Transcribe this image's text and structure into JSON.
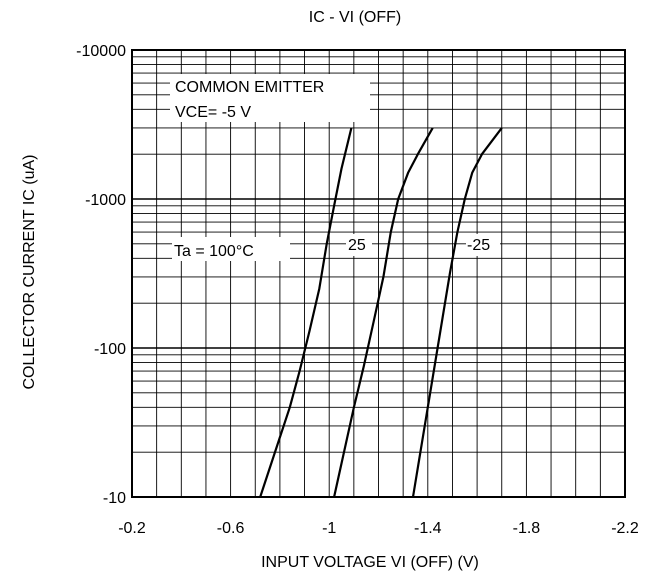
{
  "chart_data": {
    "type": "line",
    "title": "IC - VI (OFF)",
    "xlabel": "INPUT VOLTAGE   VI (OFF) (V)",
    "ylabel": "COLLECTOR CURRENT   IC (uA)",
    "x_scale": "linear",
    "y_scale": "log",
    "xlim": [
      -0.2,
      -2.2
    ],
    "ylim": [
      -10,
      -10000
    ],
    "x_ticks": [
      -0.2,
      -0.6,
      -1.0,
      -1.4,
      -1.8,
      -2.2
    ],
    "x_tick_labels": [
      "-0.2",
      "-0.6",
      "-1",
      "-1.4",
      "-1.8",
      "-2.2"
    ],
    "y_ticks": [
      -10,
      -100,
      -1000,
      -10000
    ],
    "y_tick_labels": [
      "-10",
      "-100",
      "-1000",
      "-10000"
    ],
    "grid": true,
    "annotations": [
      "COMMON EMITTER",
      "VCE= -5 V"
    ],
    "series": [
      {
        "label": "Ta = 100°C",
        "x": [
          -0.72,
          -0.78,
          -0.84,
          -0.88,
          -0.92,
          -0.96,
          -0.99,
          -1.02,
          -1.05,
          -1.09
        ],
        "y": [
          -10,
          -20,
          -40,
          -70,
          -130,
          -250,
          -500,
          -900,
          -1600,
          -3000
        ]
      },
      {
        "label": "25",
        "x": [
          -1.02,
          -1.06,
          -1.1,
          -1.14,
          -1.18,
          -1.22,
          -1.25,
          -1.28,
          -1.32,
          -1.36,
          -1.42
        ],
        "y": [
          -10,
          -20,
          -40,
          -75,
          -150,
          -300,
          -600,
          -1000,
          -1500,
          -2000,
          -3000
        ]
      },
      {
        "label": "-25",
        "x": [
          -1.34,
          -1.37,
          -1.4,
          -1.43,
          -1.46,
          -1.49,
          -1.52,
          -1.55,
          -1.58,
          -1.62,
          -1.7
        ],
        "y": [
          -10,
          -20,
          -40,
          -80,
          -160,
          -320,
          -600,
          -1000,
          -1500,
          -2000,
          -3000
        ]
      }
    ]
  }
}
